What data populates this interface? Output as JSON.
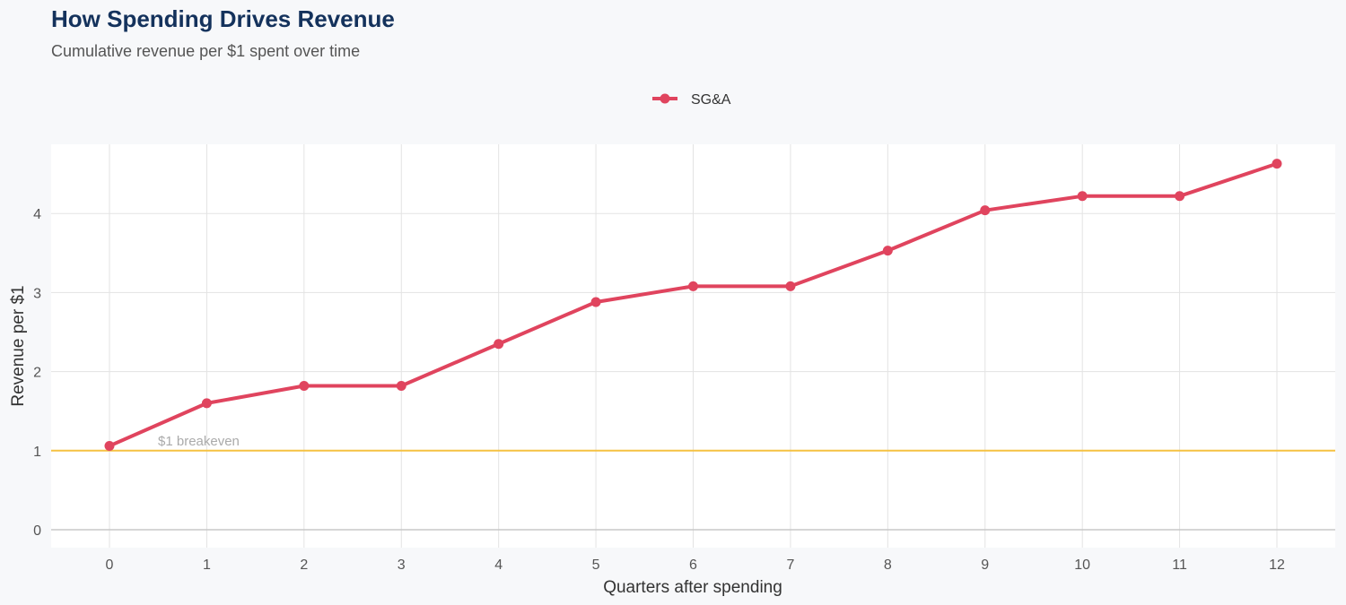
{
  "chart_data": {
    "type": "line",
    "title": "How Spending Drives Revenue",
    "subtitle": "Cumulative revenue per $1 spent over time",
    "xlabel": "Quarters after spending",
    "ylabel": "Revenue per $1",
    "x": [
      0,
      1,
      2,
      3,
      4,
      5,
      6,
      7,
      8,
      9,
      10,
      11,
      12
    ],
    "xlim": [
      0,
      12
    ],
    "ylim": [
      0,
      4.8
    ],
    "yticks": [
      0,
      1,
      2,
      3,
      4
    ],
    "grid": true,
    "legend_position": "top-center",
    "series": [
      {
        "name": "SG&A",
        "color": "#e0445e",
        "values": [
          1.06,
          1.6,
          1.82,
          1.82,
          2.35,
          2.88,
          3.08,
          3.08,
          3.53,
          4.04,
          4.22,
          4.22,
          4.63
        ]
      }
    ],
    "reference_line": {
      "y": 1,
      "label": "$1 breakeven",
      "color": "#f5c242"
    }
  }
}
